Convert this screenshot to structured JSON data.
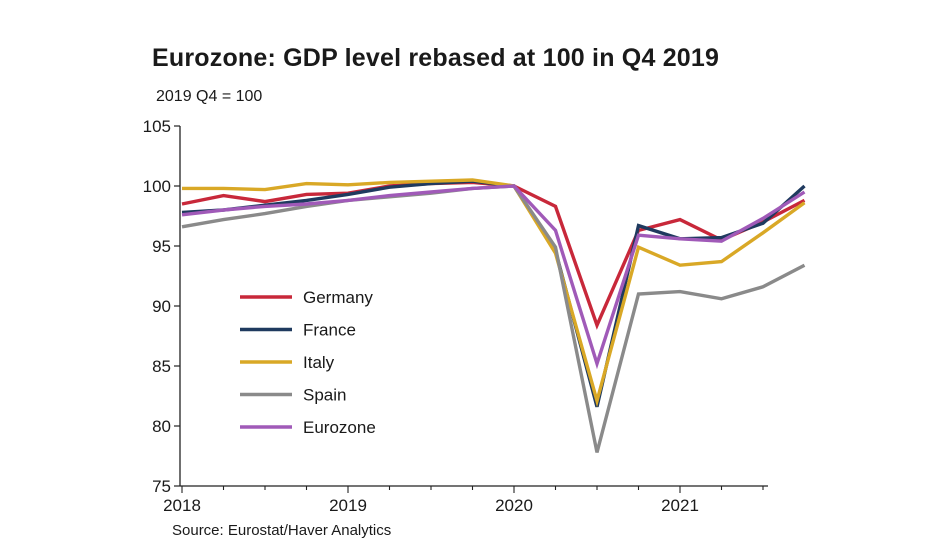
{
  "chart_data": {
    "type": "line",
    "title": "Eurozone: GDP level rebased at 100 in Q4 2019",
    "unit_label": "2019 Q4 = 100",
    "source": "Source: Eurostat/Haver Analytics",
    "xlabel": "",
    "ylabel": "",
    "ylim": [
      75,
      105
    ],
    "y_ticks": [
      75,
      80,
      85,
      90,
      95,
      100,
      105
    ],
    "x_tick_labels": [
      "2018",
      "2019",
      "2020",
      "2021"
    ],
    "x": [
      "2017 Q4",
      "2018 Q1",
      "2018 Q2",
      "2018 Q3",
      "2018 Q4",
      "2019 Q1",
      "2019 Q2",
      "2019 Q3",
      "2019 Q4",
      "2020 Q1",
      "2020 Q2",
      "2020 Q3",
      "2020 Q4",
      "2021 Q1",
      "2021 Q2",
      "2021 Q3"
    ],
    "legend_position": "center-left",
    "grid": false,
    "series": [
      {
        "name": "Germany",
        "color": "#c8283a",
        "values": [
          98.5,
          99.2,
          98.7,
          99.3,
          99.4,
          100.0,
          100.2,
          100.3,
          100.0,
          98.3,
          88.4,
          96.3,
          97.2,
          95.5,
          97.0,
          98.8
        ]
      },
      {
        "name": "France",
        "color": "#1f3a5f",
        "values": [
          97.8,
          98.0,
          98.4,
          98.8,
          99.3,
          99.9,
          100.2,
          100.4,
          100.0,
          94.6,
          81.6,
          96.7,
          95.6,
          95.7,
          96.9,
          100.0
        ]
      },
      {
        "name": "Italy",
        "color": "#d9a826",
        "values": [
          99.8,
          99.8,
          99.7,
          100.2,
          100.1,
          100.3,
          100.4,
          100.5,
          100.0,
          94.4,
          82.1,
          94.9,
          93.4,
          93.7,
          96.1,
          98.6
        ]
      },
      {
        "name": "Spain",
        "color": "#8a8a8a",
        "values": [
          96.6,
          97.2,
          97.7,
          98.3,
          98.8,
          99.1,
          99.4,
          99.8,
          100.0,
          94.9,
          77.8,
          91.0,
          91.2,
          90.6,
          91.6,
          93.4
        ]
      },
      {
        "name": "Eurozone",
        "color": "#a05ab8",
        "values": [
          97.6,
          98.0,
          98.3,
          98.5,
          98.8,
          99.2,
          99.5,
          99.8,
          100.0,
          96.3,
          85.2,
          95.9,
          95.6,
          95.4,
          97.3,
          99.5
        ]
      }
    ]
  }
}
